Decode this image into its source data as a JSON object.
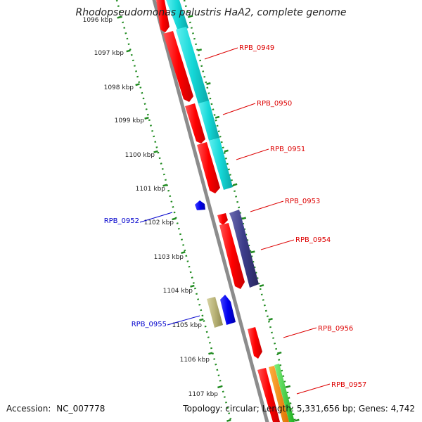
{
  "title": "Rhodopseudomonas palustris HaA2, complete genome",
  "colors": {
    "tick_green": "#1f8a1f",
    "backbone": "#8c8c8c",
    "gene_red": "#ff0000",
    "gene_cyan": "#15d7d7",
    "gene_blue": "#0000ee",
    "gene_navy": "#3b3b88",
    "gene_khaki": "#b8b277",
    "gene_orange": "#ff8c00",
    "gene_green": "#39d13a",
    "label_red": "#dd0000",
    "label_blue": "#0000cc"
  },
  "kbp_labels": [
    "1096 kbp",
    "1097 kbp",
    "1098 kbp",
    "1099 kbp",
    "1100 kbp",
    "1101 kbp",
    "1102 kbp",
    "1103 kbp",
    "1104 kbp",
    "1105 kbp",
    "1106 kbp",
    "1107 kbp"
  ],
  "genes_right": [
    "RPB_0949",
    "RPB_0950",
    "RPB_0951",
    "RPB_0953",
    "RPB_0954",
    "RPB_0956",
    "RPB_0957"
  ],
  "genes_left": [
    "RPB_0952",
    "RPB_0955"
  ],
  "footer": {
    "accession_label": "Accession:",
    "accession": "NC_007778",
    "topology_label": "Topology:",
    "topology": "circular;",
    "length_label": "Length:",
    "length": "5,331,656 bp;",
    "genes_label": "Genes:",
    "genes": "4,742"
  }
}
